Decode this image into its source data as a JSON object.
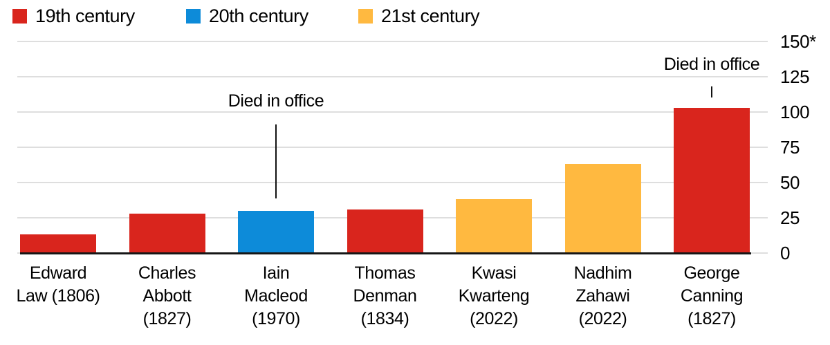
{
  "legend": {
    "items": [
      {
        "label": "19th century",
        "color": "#d9251d"
      },
      {
        "label": "20th century",
        "color": "#0d8bd9"
      },
      {
        "label": "21st century",
        "color": "#ffb940"
      }
    ]
  },
  "colors": {
    "grid": "#dedede",
    "baseline": "#161616",
    "text": "#000000",
    "background": "#ffffff"
  },
  "chart_data": {
    "type": "bar",
    "title": "",
    "categories": [
      "Edward Law (1806)",
      "Charles Abbott (1827)",
      "Iain Macleod (1970)",
      "Thomas Denman (1834)",
      "Kwasi Kwarteng (2022)",
      "Nadhim Zahawi (2022)",
      "George Canning (1827)"
    ],
    "category_label_lines": [
      [
        "Edward",
        "Law (1806)"
      ],
      [
        "Charles",
        "Abbott",
        "(1827)"
      ],
      [
        "Iain",
        "Macleod",
        "(1970)"
      ],
      [
        "Thomas",
        "Denman",
        "(1834)"
      ],
      [
        "Kwasi",
        "Kwarteng",
        "(2022)"
      ],
      [
        "Nadhim",
        "Zahawi",
        "(2022)"
      ],
      [
        "George",
        "Canning",
        "(1827)"
      ]
    ],
    "values": [
      13,
      28,
      30,
      31,
      38,
      63,
      103
    ],
    "bar_series": [
      "19th century",
      "19th century",
      "20th century",
      "19th century",
      "21st century",
      "21st century",
      "19th century"
    ],
    "ylim": [
      0,
      150
    ],
    "yticks": [
      0,
      25,
      50,
      75,
      100,
      125,
      150
    ],
    "ytick_labels": [
      "0",
      "25",
      "50",
      "75",
      "100",
      "125",
      "150*"
    ],
    "grid": true,
    "legend_position": "top-left",
    "axis_side": "right",
    "annotations": [
      {
        "text": "Died in office",
        "bar_index": 2
      },
      {
        "text": "Died in office",
        "bar_index": 6
      }
    ]
  }
}
